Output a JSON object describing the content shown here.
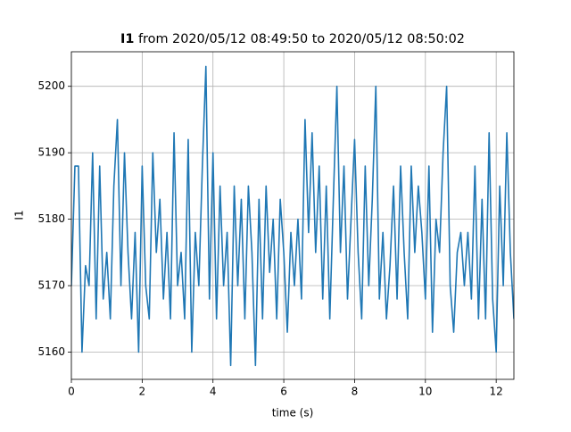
{
  "chart_data": {
    "type": "line",
    "title": {
      "signal": "I1",
      "range": "from 2020/05/12 08:49:50 to 2020/05/12 08:50:02"
    },
    "x_label": "time (s)",
    "y_label": "I1",
    "x": [
      0,
      0.1,
      0.2,
      0.3,
      0.4,
      0.5,
      0.6,
      0.7,
      0.8,
      0.9,
      1.0,
      1.1,
      1.2,
      1.3,
      1.4,
      1.5,
      1.6,
      1.7,
      1.8,
      1.9,
      2.0,
      2.1,
      2.2,
      2.3,
      2.4,
      2.5,
      2.6,
      2.7,
      2.8,
      2.9,
      3.0,
      3.1,
      3.2,
      3.3,
      3.4,
      3.5,
      3.6,
      3.7,
      3.8,
      3.9,
      4.0,
      4.1,
      4.2,
      4.3,
      4.4,
      4.5,
      4.6,
      4.7,
      4.8,
      4.9,
      5.0,
      5.1,
      5.2,
      5.3,
      5.4,
      5.5,
      5.6,
      5.7,
      5.8,
      5.9,
      6.0,
      6.1,
      6.2,
      6.3,
      6.4,
      6.5,
      6.6,
      6.7,
      6.8,
      6.9,
      7.0,
      7.1,
      7.2,
      7.3,
      7.4,
      7.5,
      7.6,
      7.7,
      7.8,
      7.9,
      8.0,
      8.1,
      8.2,
      8.3,
      8.4,
      8.5,
      8.6,
      8.7,
      8.8,
      8.9,
      9.0,
      9.1,
      9.2,
      9.3,
      9.4,
      9.5,
      9.6,
      9.7,
      9.8,
      9.9,
      10.0,
      10.1,
      10.2,
      10.3,
      10.4,
      10.5,
      10.6,
      10.7,
      10.8,
      10.9,
      11.0,
      11.1,
      11.2,
      11.3,
      11.4,
      11.5,
      11.6,
      11.7,
      11.8,
      11.9,
      12.0,
      12.1,
      12.2,
      12.3,
      12.4,
      12.5
    ],
    "values": [
      5170,
      5188,
      5188,
      5160,
      5173,
      5170,
      5190,
      5165,
      5188,
      5168,
      5175,
      5165,
      5185,
      5195,
      5170,
      5190,
      5175,
      5165,
      5178,
      5160,
      5188,
      5170,
      5165,
      5190,
      5175,
      5183,
      5168,
      5178,
      5165,
      5193,
      5170,
      5175,
      5165,
      5192,
      5160,
      5178,
      5170,
      5188,
      5203,
      5168,
      5190,
      5165,
      5185,
      5170,
      5178,
      5158,
      5185,
      5170,
      5183,
      5165,
      5185,
      5175,
      5158,
      5183,
      5165,
      5185,
      5172,
      5180,
      5165,
      5183,
      5175,
      5163,
      5178,
      5170,
      5180,
      5168,
      5195,
      5178,
      5193,
      5175,
      5188,
      5168,
      5185,
      5165,
      5183,
      5200,
      5175,
      5188,
      5168,
      5180,
      5192,
      5175,
      5165,
      5188,
      5170,
      5183,
      5200,
      5168,
      5178,
      5165,
      5173,
      5185,
      5168,
      5188,
      5175,
      5165,
      5188,
      5175,
      5185,
      5178,
      5168,
      5188,
      5163,
      5180,
      5175,
      5190,
      5200,
      5170,
      5163,
      5175,
      5178,
      5170,
      5178,
      5168,
      5188,
      5165,
      5183,
      5165,
      5193,
      5168,
      5160,
      5185,
      5170,
      5193,
      5175,
      5165
    ],
    "color": "#1f77b4",
    "xlim": [
      0,
      12.5
    ],
    "xticks": [
      0,
      2,
      4,
      6,
      8,
      10,
      12
    ],
    "ylim": [
      5155.9,
      5205.2
    ],
    "yticks": [
      5160,
      5170,
      5180,
      5190,
      5200
    ],
    "grid": true
  }
}
